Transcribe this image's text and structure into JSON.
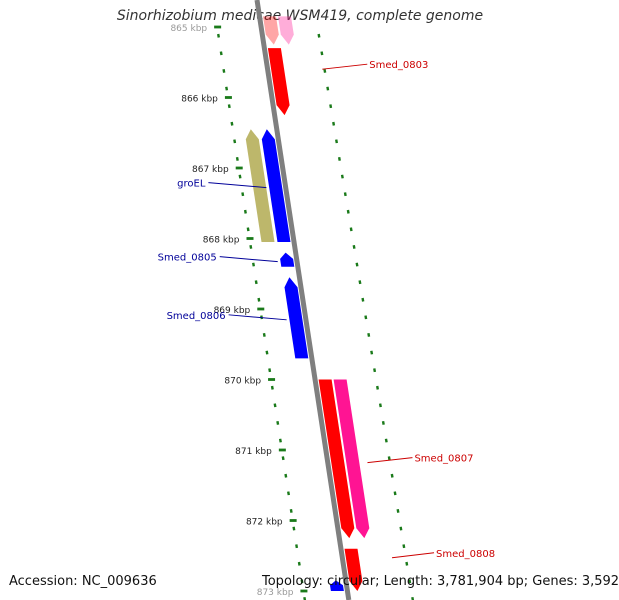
{
  "title": "Sinorhizobium medicae WSM419, complete genome",
  "footer": {
    "accession": "Accession: NC_009636",
    "stats": "Topology: circular; Length: 3,781,904 bp; Genes: 3,592"
  },
  "colors": {
    "backbone": "#7f7f7f",
    "tick": "#1a7a1a",
    "gene_red": "#ff0000",
    "gene_blue": "#0000ff",
    "gene_khaki": "#bdb76b",
    "gene_pink": "#ff1493",
    "label_red": "#cc0000",
    "label_blue": "#000099"
  },
  "chart_data": {
    "type": "linear-genome-map",
    "units": "kbp",
    "range_kbp": [
      864.8,
      873.0
    ],
    "ticks": [
      {
        "kbp": 865,
        "label": "865 kbp"
      },
      {
        "kbp": 866,
        "label": "866 kbp"
      },
      {
        "kbp": 867,
        "label": "867 kbp"
      },
      {
        "kbp": 868,
        "label": "868 kbp"
      },
      {
        "kbp": 869,
        "label": "869 kbp"
      },
      {
        "kbp": 870,
        "label": "870 kbp"
      },
      {
        "kbp": 871,
        "label": "871 kbp"
      },
      {
        "kbp": 872,
        "label": "872 kbp"
      },
      {
        "kbp": 873,
        "label": "873 kbp"
      }
    ],
    "genes": [
      {
        "name": "",
        "start": 864.85,
        "end": 865.25,
        "strand": "+",
        "track": 1,
        "color": "red",
        "faded": true
      },
      {
        "name": "",
        "start": 864.85,
        "end": 865.25,
        "strand": "+",
        "track": 2,
        "color": "pink",
        "faded": true
      },
      {
        "name": "Smed_0803",
        "start": 865.3,
        "end": 866.25,
        "strand": "+",
        "track": 1,
        "color": "red"
      },
      {
        "name": "",
        "start": 866.45,
        "end": 868.05,
        "strand": "-",
        "track": -2,
        "color": "khaki"
      },
      {
        "name": "groEL",
        "start": 866.45,
        "end": 868.05,
        "strand": "-",
        "track": -1,
        "color": "blue"
      },
      {
        "name": "Smed_0805",
        "start": 868.2,
        "end": 868.4,
        "strand": "-",
        "track": -1,
        "color": "blue"
      },
      {
        "name": "Smed_0806",
        "start": 868.55,
        "end": 869.7,
        "strand": "-",
        "track": -1,
        "color": "blue"
      },
      {
        "name": "",
        "start": 870.0,
        "end": 872.25,
        "strand": "+",
        "track": 1,
        "color": "red"
      },
      {
        "name": "Smed_0807",
        "start": 870.0,
        "end": 872.25,
        "strand": "+",
        "track": 2,
        "color": "pink"
      },
      {
        "name": "Smed_0808",
        "start": 872.4,
        "end": 873.0,
        "strand": "+",
        "track": 1,
        "color": "red"
      },
      {
        "name": "",
        "start": 872.85,
        "end": 873.0,
        "strand": "-",
        "track": -1,
        "color": "blue"
      }
    ]
  }
}
